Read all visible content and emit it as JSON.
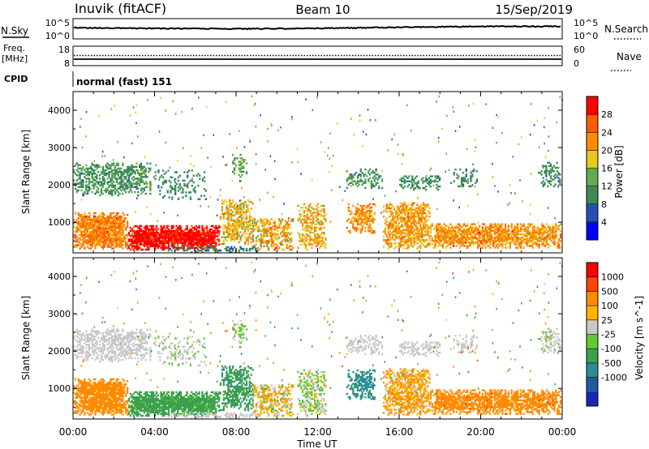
{
  "header": {
    "station": "Inuvik (fitACF)",
    "beam": "Beam 10",
    "date": "15/Sep/2019"
  },
  "status_panels": {
    "nsky_label": "N.Sky",
    "nsky_ticks": [
      "10^5",
      "10^0"
    ],
    "nsearch_label": "N.Search",
    "nsearch_ticks": [
      "10^5",
      "10^0"
    ],
    "freq_label": "Freq.",
    "freq_unit": "[MHz]",
    "freq_ticks": [
      "18",
      "8"
    ],
    "nave_label": "Nave",
    "nave_ticks": [
      "60",
      "0"
    ],
    "cpid_label": "CPID",
    "cpid_value": "normal (fast) 151"
  },
  "colors": {
    "power_scale": [
      "#0000ff",
      "#2850b4",
      "#3c8c5a",
      "#66aa50",
      "#e6c81e",
      "#ff8c00",
      "#ff5a00",
      "#ff0000"
    ],
    "velocity_scale": [
      "#ff0000",
      "#ff4500",
      "#ff8c00",
      "#ffb400",
      "#c8c8c8",
      "#64c832",
      "#3ca050",
      "#2d8c96",
      "#1e5aa0",
      "#1428b4"
    ]
  },
  "chart_data": [
    {
      "type": "heatmap",
      "name": "power",
      "xlabel": "",
      "ylabel": "Slant Range [km]",
      "ylim": [
        180,
        4500
      ],
      "y_ticks": [
        "4000",
        "3000",
        "2000",
        "1000"
      ],
      "y_tick_values": [
        4000,
        3000,
        2000,
        1000
      ],
      "x_range_hours": [
        0,
        24
      ],
      "colorbar_label": "Power [dB]",
      "colorbar_ticks": [
        "28",
        "24",
        "20",
        "16",
        "12",
        "8",
        "4"
      ],
      "colorbar_range": [
        0,
        32
      ]
    },
    {
      "type": "heatmap",
      "name": "velocity",
      "xlabel": "Time UT",
      "ylabel": "Slant Range [km]",
      "ylim": [
        180,
        4500
      ],
      "y_ticks": [
        "4000",
        "3000",
        "2000",
        "1000"
      ],
      "y_tick_values": [
        4000,
        3000,
        2000,
        1000
      ],
      "x_ticks": [
        "00:00",
        "04:00",
        "08:00",
        "12:00",
        "16:00",
        "20:00",
        "00:00"
      ],
      "x_tick_values": [
        0,
        4,
        8,
        12,
        16,
        20,
        24
      ],
      "x_range_hours": [
        0,
        24
      ],
      "colorbar_label": "Velocity [m s^-1]",
      "colorbar_ticks": [
        "1000",
        "500",
        "100",
        "25",
        "-25",
        "-100",
        "-500",
        "-1000"
      ]
    }
  ]
}
